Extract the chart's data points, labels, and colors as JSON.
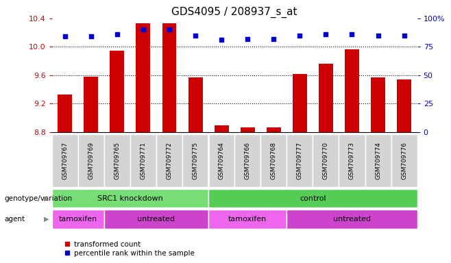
{
  "title": "GDS4095 / 208937_s_at",
  "samples": [
    "GSM709767",
    "GSM709769",
    "GSM709765",
    "GSM709771",
    "GSM709772",
    "GSM709775",
    "GSM709764",
    "GSM709766",
    "GSM709768",
    "GSM709777",
    "GSM709770",
    "GSM709773",
    "GSM709774",
    "GSM709776"
  ],
  "red_values": [
    9.33,
    9.58,
    9.95,
    10.33,
    10.33,
    9.57,
    8.89,
    8.87,
    8.87,
    9.62,
    9.76,
    9.96,
    9.57,
    9.54
  ],
  "blue_pct": [
    84,
    84,
    86,
    90,
    90,
    85,
    81,
    82,
    82,
    85,
    86,
    86,
    85,
    85
  ],
  "ylim_left": [
    8.8,
    10.4
  ],
  "yticks_left": [
    8.8,
    9.2,
    9.6,
    10.0,
    10.4
  ],
  "ylim_right": [
    0,
    100
  ],
  "yticks_right": [
    0,
    25,
    50,
    75,
    100
  ],
  "yticklabels_right": [
    "0",
    "25",
    "50",
    "75",
    "100%"
  ],
  "bar_color": "#cc0000",
  "dot_color": "#0000cc",
  "bar_bottom": 8.8,
  "genotype_groups": [
    {
      "label": "SRC1 knockdown",
      "start": 0,
      "end": 6,
      "color": "#77dd77"
    },
    {
      "label": "control",
      "start": 6,
      "end": 14,
      "color": "#55cc55"
    }
  ],
  "agent_groups": [
    {
      "label": "tamoxifen",
      "start": 0,
      "end": 2,
      "color": "#ee66ee"
    },
    {
      "label": "untreated",
      "start": 2,
      "end": 6,
      "color": "#cc44cc"
    },
    {
      "label": "tamoxifen",
      "start": 6,
      "end": 9,
      "color": "#ee66ee"
    },
    {
      "label": "untreated",
      "start": 9,
      "end": 14,
      "color": "#cc44cc"
    }
  ],
  "legend_red_label": "transformed count",
  "legend_blue_label": "percentile rank within the sample",
  "genotype_label": "genotype/variation",
  "agent_label": "agent",
  "title_fontsize": 11,
  "tick_fontsize": 8,
  "sample_fontsize": 6.5,
  "row_fontsize": 8
}
